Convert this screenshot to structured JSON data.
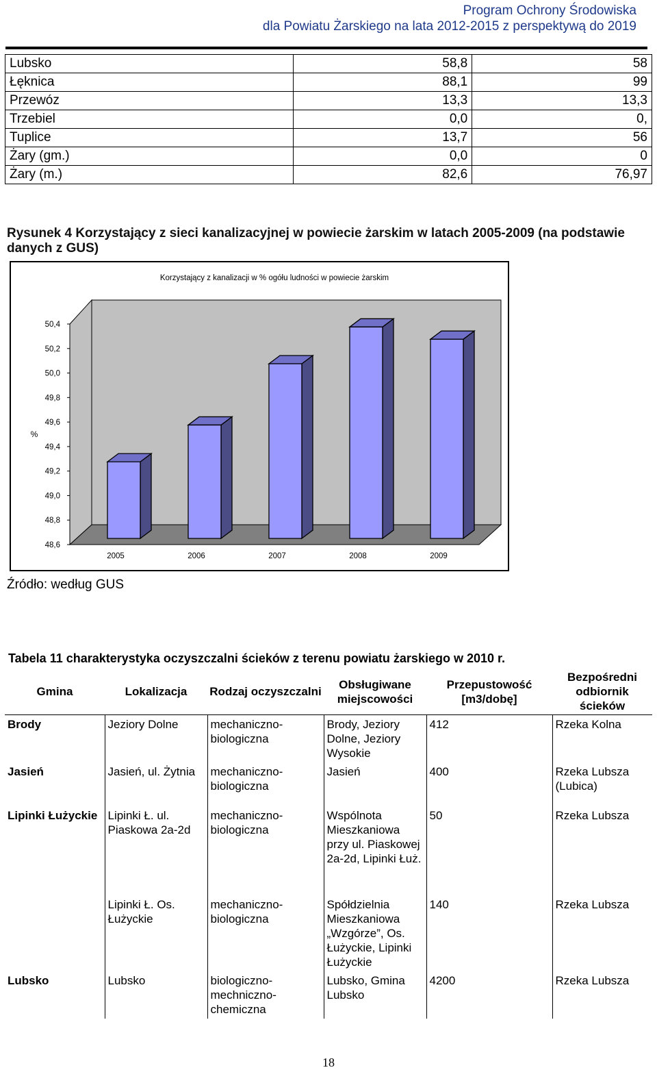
{
  "header": {
    "line1": "Program Ochrony Środowiska",
    "line2": "dla Powiatu Żarskiego na lata 2012-2015 z perspektywą do 2019"
  },
  "top_table": [
    {
      "gmina": "Lubsko",
      "v1": "58,8",
      "v2": "58"
    },
    {
      "gmina": "Łęknica",
      "v1": "88,1",
      "v2": "99"
    },
    {
      "gmina": "Przewóz",
      "v1": "13,3",
      "v2": "13,3"
    },
    {
      "gmina": "Trzebiel",
      "v1": "0,0",
      "v2": "0,"
    },
    {
      "gmina": "Tuplice",
      "v1": "13,7",
      "v2": "56"
    },
    {
      "gmina": "Żary (gm.)",
      "v1": "0,0",
      "v2": "0"
    },
    {
      "gmina": "Żary (m.)",
      "v1": "82,6",
      "v2": "76,97"
    }
  ],
  "figure_caption": "Rysunek 4 Korzystający z sieci kanalizacyjnej w powiecie żarskim w latach 2005-2009 (na podstawie danych z GUS)",
  "chart_data": {
    "type": "bar",
    "title": "Korzystający z kanalizacji w % ogółu ludności w powiecie żarskim",
    "categories": [
      "2005",
      "2006",
      "2007",
      "2008",
      "2009"
    ],
    "values": [
      49.22,
      49.52,
      50.02,
      50.32,
      50.22
    ],
    "ylabel": "%",
    "ylim": [
      48.6,
      50.4
    ],
    "yticks": [
      "50,4",
      "50,2",
      "50,0",
      "49,8",
      "49,6",
      "49,4",
      "49,2",
      "49,0",
      "48,8",
      "48,6"
    ],
    "grid": false,
    "legend": "none",
    "bar_color": "#9999ff",
    "wall_color": "#c0c0c0",
    "floor_color": "#808080"
  },
  "source": "Źródło: według GUS",
  "table11": {
    "caption": "Tabela 11 charakterystyka oczyszczalni ścieków z terenu powiatu żarskiego w 2010 r.",
    "headers": {
      "gmina": "Gmina",
      "lokalizacja": "Lokalizacja",
      "rodzaj": "Rodzaj oczyszczalni",
      "obslugiwane": "Obsługiwane miejscowości",
      "przepustowosc": "Przepustowość [m3/dobę]",
      "odbiornik": "Bezpośredni odbiornik ścieków"
    },
    "rows": [
      {
        "gmina": "Brody",
        "lokalizacja": "Jeziory Dolne",
        "rodzaj": "mechaniczno-biologiczna",
        "miejscowosci": "Brody, Jeziory Dolne, Jeziory Wysokie",
        "przepustowosc": "412",
        "odbiornik": "Rzeka Kolna"
      },
      {
        "gmina": "Jasień",
        "lokalizacja": "Jasień, ul. Żytnia",
        "rodzaj": "mechaniczno-biologiczna",
        "miejscowosci": "Jasień",
        "przepustowosc": "400",
        "odbiornik": "Rzeka Lubsza (Lubica)"
      },
      {
        "gmina": "Lipinki Łużyckie",
        "lokalizacja": "Lipinki Ł. ul. Piaskowa 2a-2d",
        "rodzaj": "mechaniczno-biologiczna",
        "miejscowosci": "Wspólnota Mieszkaniowa przy ul. Piaskowej 2a-2d, Lipinki Łuż.",
        "przepustowosc": "50",
        "odbiornik": "Rzeka Lubsza"
      },
      {
        "gmina": "",
        "lokalizacja": "Lipinki Ł. Os. Łużyckie",
        "rodzaj": "mechaniczno-biologiczna",
        "miejscowosci": "Spółdzielnia Mieszkaniowa „Wzgórze”, Os. Łużyckie, Lipinki Łużyckie",
        "przepustowosc": "140",
        "odbiornik": "Rzeka Lubsza"
      },
      {
        "gmina": "Lubsko",
        "lokalizacja": "Lubsko",
        "rodzaj": "biologiczno-mechniczno-chemiczna",
        "miejscowosci": "Lubsko, Gmina Lubsko",
        "przepustowosc": "4200",
        "odbiornik": "Rzeka Lubsza"
      }
    ]
  },
  "page_number": "18"
}
